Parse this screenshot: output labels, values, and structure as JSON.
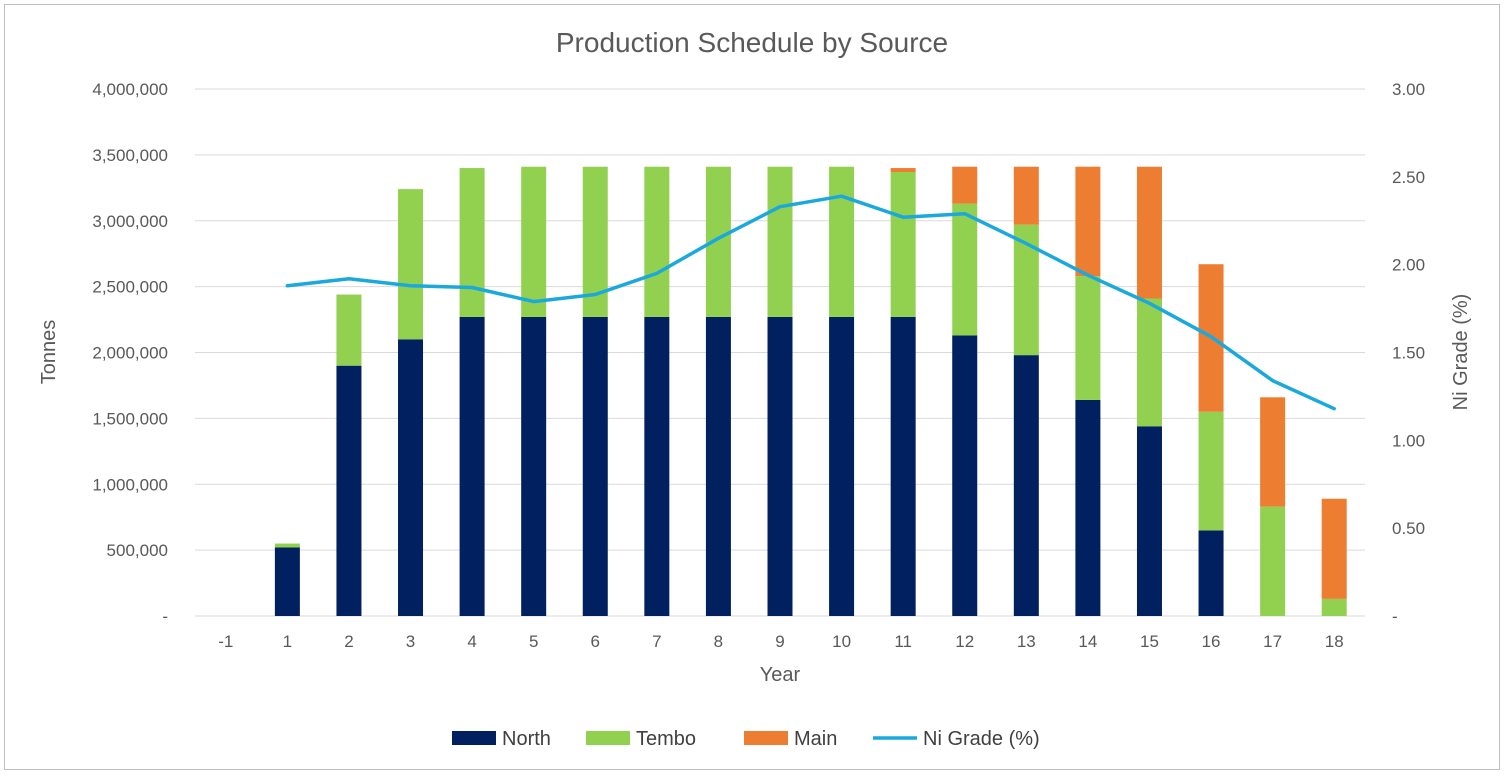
{
  "chart_data": {
    "type": "bar",
    "stacked": true,
    "title": "Production Schedule by Source",
    "xlabel": "Year",
    "ylabel": "Tonnes",
    "y2label": "Ni Grade (%)",
    "categories": [
      "-1",
      "1",
      "2",
      "3",
      "4",
      "5",
      "6",
      "7",
      "8",
      "9",
      "10",
      "11",
      "12",
      "13",
      "14",
      "15",
      "16",
      "17",
      "18"
    ],
    "ylim": [
      0,
      4000000
    ],
    "y2lim": [
      0,
      3.0
    ],
    "yticks": [
      "-",
      "500,000",
      "1,000,000",
      "1,500,000",
      "2,000,000",
      "2,500,000",
      "3,000,000",
      "3,500,000",
      "4,000,000"
    ],
    "y2ticks": [
      "-",
      "0.50",
      "1.00",
      "1.50",
      "2.00",
      "2.50",
      "3.00"
    ],
    "grid": true,
    "legend_position": "bottom",
    "series": [
      {
        "name": "North",
        "type": "bar",
        "color": "#002060",
        "values": [
          0,
          520000,
          1900000,
          2100000,
          2270000,
          2270000,
          2270000,
          2270000,
          2270000,
          2270000,
          2270000,
          2270000,
          2130000,
          1980000,
          1640000,
          1440000,
          650000,
          0,
          0
        ]
      },
      {
        "name": "Tembo",
        "type": "bar",
        "color": "#92D050",
        "values": [
          0,
          30000,
          540000,
          1140000,
          1130000,
          1140000,
          1140000,
          1140000,
          1140000,
          1140000,
          1140000,
          1100000,
          1000000,
          990000,
          940000,
          970000,
          900000,
          830000,
          130000
        ]
      },
      {
        "name": "Main",
        "type": "bar",
        "color": "#ED7D31",
        "values": [
          0,
          0,
          0,
          0,
          0,
          0,
          0,
          0,
          0,
          0,
          0,
          30000,
          280000,
          440000,
          830000,
          1000000,
          1120000,
          830000,
          760000
        ]
      },
      {
        "name": "Ni Grade (%)",
        "type": "line",
        "axis": "right",
        "color": "#1BA8DC",
        "values": [
          null,
          1.88,
          1.92,
          1.88,
          1.87,
          1.79,
          1.83,
          1.95,
          2.15,
          2.33,
          2.39,
          2.27,
          2.29,
          2.12,
          1.94,
          1.78,
          1.59,
          1.34,
          1.18
        ]
      }
    ]
  }
}
